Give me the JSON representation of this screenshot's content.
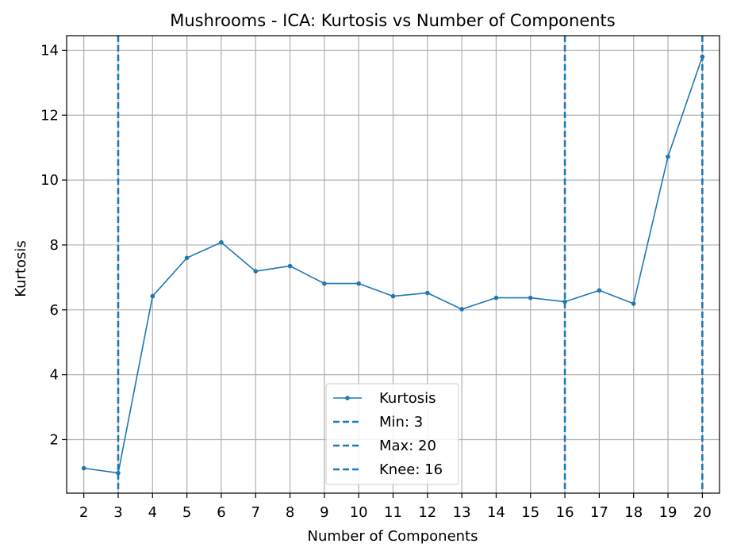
{
  "chart_data": {
    "type": "line",
    "title": "Mushrooms - ICA: Kurtosis vs Number of Components",
    "xlabel": "Number of Components",
    "ylabel": "Kurtosis",
    "x": [
      2,
      3,
      4,
      5,
      6,
      7,
      8,
      9,
      10,
      11,
      12,
      13,
      14,
      15,
      16,
      17,
      18,
      19,
      20
    ],
    "xlim": [
      1.5,
      20.5
    ],
    "ylim": [
      0.35,
      14.45
    ],
    "yticks": [
      2,
      4,
      6,
      8,
      10,
      12,
      14
    ],
    "grid": true,
    "legend_position": "lower center",
    "series": [
      {
        "name": "Kurtosis",
        "values": [
          1.12,
          0.97,
          6.42,
          7.6,
          8.08,
          7.19,
          7.35,
          6.81,
          6.81,
          6.42,
          6.52,
          6.02,
          6.37,
          6.37,
          6.25,
          6.6,
          6.19,
          10.72,
          13.8
        ],
        "color": "#1f77b4",
        "marker": "dot"
      }
    ],
    "vlines": [
      {
        "label": "Min: 3",
        "x": 3,
        "color": "#1f77b4",
        "style": "dashed"
      },
      {
        "label": "Max: 20",
        "x": 20,
        "color": "#1f77b4",
        "style": "dashed"
      },
      {
        "label": "Knee: 16",
        "x": 16,
        "color": "#1f77b4",
        "style": "dashed"
      }
    ]
  }
}
